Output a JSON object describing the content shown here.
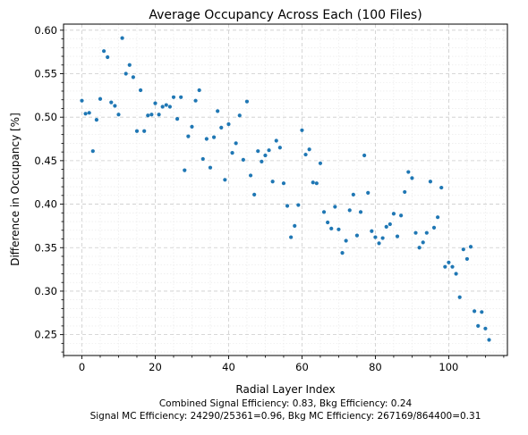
{
  "chart_data": {
    "type": "scatter",
    "title": "Average Occupancy Across Each  (100 Files)",
    "xlabel": "Radial Layer Index",
    "ylabel": "Difference in Occupancy [%]",
    "xlim": [
      -5,
      116
    ],
    "ylim": [
      0.226,
      0.607
    ],
    "xticks": [
      0,
      20,
      40,
      60,
      80,
      100
    ],
    "yticks": [
      0.25,
      0.3,
      0.35,
      0.4,
      0.45,
      0.5,
      0.55,
      0.6
    ],
    "ytick_labels": [
      "0.25",
      "0.30",
      "0.35",
      "0.40",
      "0.45",
      "0.50",
      "0.55",
      "0.60"
    ],
    "grid": true,
    "minor_grid": true,
    "marker_color": "#1f77b4",
    "series": [
      {
        "x": [
          0,
          1,
          2,
          3,
          4,
          5,
          6,
          7,
          8,
          9,
          10,
          11,
          12,
          13,
          14,
          15,
          16,
          17,
          18,
          19,
          20,
          21,
          22,
          23,
          24,
          25,
          26,
          27,
          28,
          29,
          30,
          31,
          32,
          33,
          34,
          35,
          36,
          37,
          38,
          39,
          40,
          41,
          42,
          43,
          44,
          45,
          46,
          47,
          48,
          49,
          50,
          51,
          52,
          53,
          54,
          55,
          56,
          57,
          58,
          59,
          60,
          61,
          62,
          63,
          64,
          65,
          66,
          67,
          68,
          69,
          70,
          71,
          72,
          73,
          74,
          75,
          76,
          77,
          78,
          79,
          80,
          81,
          82,
          83,
          84,
          85,
          86,
          87,
          88,
          89,
          90,
          91,
          92,
          93,
          94,
          95,
          96,
          97,
          98,
          99,
          100,
          101,
          102,
          103,
          104,
          105,
          106,
          107,
          108,
          109,
          110,
          111
        ],
        "y": [
          0.519,
          0.504,
          0.505,
          0.461,
          0.497,
          0.521,
          0.576,
          0.569,
          0.517,
          0.513,
          0.503,
          0.591,
          0.55,
          0.56,
          0.546,
          0.484,
          0.531,
          0.484,
          0.502,
          0.503,
          0.516,
          0.503,
          0.512,
          0.514,
          0.512,
          0.523,
          0.498,
          0.523,
          0.439,
          0.478,
          0.489,
          0.519,
          0.531,
          0.452,
          0.475,
          0.442,
          0.477,
          0.507,
          0.488,
          0.428,
          0.492,
          0.459,
          0.47,
          0.502,
          0.451,
          0.518,
          0.433,
          0.411,
          0.461,
          0.449,
          0.456,
          0.462,
          0.426,
          0.473,
          0.465,
          0.424,
          0.398,
          0.362,
          0.375,
          0.399,
          0.485,
          0.457,
          0.463,
          0.425,
          0.424,
          0.447,
          0.391,
          0.379,
          0.372,
          0.397,
          0.371,
          0.344,
          0.358,
          0.393,
          0.411,
          0.364,
          0.391,
          0.456,
          0.413,
          0.369,
          0.362,
          0.355,
          0.361,
          0.374,
          0.377,
          0.389,
          0.363,
          0.387,
          0.414,
          0.437,
          0.43,
          0.367,
          0.35,
          0.356,
          0.367,
          0.426,
          0.373,
          0.385,
          0.419,
          0.328,
          0.333,
          0.328,
          0.32,
          0.293,
          0.348,
          0.337,
          0.351,
          0.277,
          0.26,
          0.276,
          0.257,
          0.244
        ]
      }
    ]
  },
  "footer": {
    "line1": "Combined Signal Efficiency: 0.83, Bkg Efficiency: 0.24",
    "line2": "Signal MC Efficiency: 24290/25361=0.96, Bkg MC Efficiency: 267169/864400=0.31"
  }
}
